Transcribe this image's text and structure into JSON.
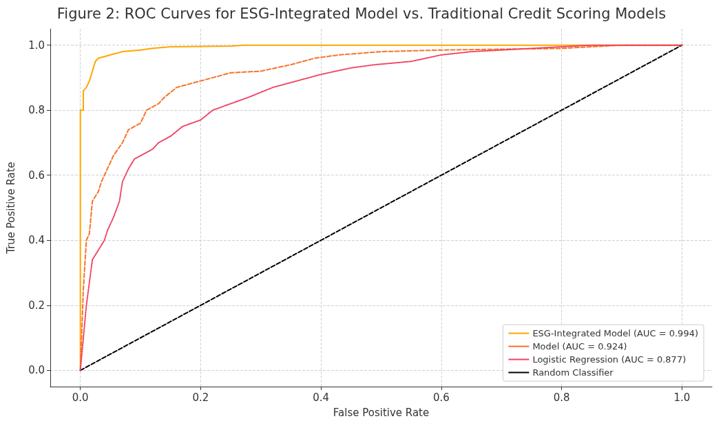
{
  "chart_data": {
    "type": "line",
    "title": "Figure 2: ROC Curves for ESG-Integrated Model vs. Traditional Credit Scoring Models",
    "xlabel": "False Positive Rate",
    "ylabel": "True Positive Rate",
    "xlim": [
      -0.05,
      1.05
    ],
    "ylim": [
      -0.05,
      1.05
    ],
    "xticks": [
      {
        "value": 0,
        "label": "0.0"
      },
      {
        "value": 0.2,
        "label": "0.2"
      },
      {
        "value": 0.4,
        "label": "0.4"
      },
      {
        "value": 0.6,
        "label": "0.6"
      },
      {
        "value": 0.8,
        "label": "0.8"
      },
      {
        "value": 1,
        "label": "1.0"
      }
    ],
    "yticks": [
      {
        "value": 0,
        "label": "0.0"
      },
      {
        "value": 0.2,
        "label": "0.2"
      },
      {
        "value": 0.4,
        "label": "0.4"
      },
      {
        "value": 0.6,
        "label": "0.6"
      },
      {
        "value": 0.8,
        "label": "0.8"
      },
      {
        "value": 1,
        "label": "1.0"
      }
    ],
    "grid": true,
    "legend": "bottom right",
    "marker": "none",
    "series": [
      {
        "name": "ESG-Integrated Model (AUC = 0.994)",
        "color": "#ffa500",
        "line_style": "solid",
        "x": [
          0,
          0,
          0.005,
          0.005,
          0.01,
          0.015,
          0.02,
          0.025,
          0.03,
          0.04,
          0.05,
          0.07,
          0.1,
          0.12,
          0.15,
          0.25,
          0.27,
          1
        ],
        "values": [
          0,
          0.8,
          0.8,
          0.86,
          0.87,
          0.89,
          0.92,
          0.95,
          0.96,
          0.965,
          0.97,
          0.98,
          0.985,
          0.99,
          0.995,
          0.997,
          1,
          1
        ]
      },
      {
        "name": "Model (AUC = 0.924)",
        "color": "#f5732a",
        "line_style": "dashed",
        "x": [
          0,
          0.005,
          0.01,
          0.015,
          0.02,
          0.03,
          0.035,
          0.04,
          0.05,
          0.055,
          0.07,
          0.08,
          0.1,
          0.11,
          0.13,
          0.14,
          0.16,
          0.2,
          0.22,
          0.25,
          0.3,
          0.35,
          0.39,
          0.43,
          0.5,
          0.6,
          0.8,
          0.9,
          1
        ],
        "values": [
          0,
          0.25,
          0.4,
          0.42,
          0.52,
          0.55,
          0.58,
          0.6,
          0.64,
          0.66,
          0.7,
          0.74,
          0.76,
          0.8,
          0.82,
          0.84,
          0.87,
          0.89,
          0.9,
          0.915,
          0.92,
          0.94,
          0.96,
          0.97,
          0.98,
          0.985,
          0.99,
          1,
          1
        ]
      },
      {
        "name": "Logistic Regression (AUC = 0.877)",
        "color": "#f0405f",
        "line_style": "dotted",
        "x": [
          0,
          0.005,
          0.01,
          0.015,
          0.02,
          0.03,
          0.04,
          0.045,
          0.055,
          0.065,
          0.07,
          0.08,
          0.09,
          0.12,
          0.13,
          0.15,
          0.17,
          0.2,
          0.22,
          0.25,
          0.28,
          0.32,
          0.36,
          0.4,
          0.45,
          0.49,
          0.55,
          0.6,
          0.65,
          0.75,
          0.85,
          1
        ],
        "values": [
          0,
          0.1,
          0.2,
          0.27,
          0.34,
          0.37,
          0.4,
          0.43,
          0.47,
          0.52,
          0.58,
          0.62,
          0.65,
          0.68,
          0.7,
          0.72,
          0.75,
          0.77,
          0.8,
          0.82,
          0.84,
          0.87,
          0.89,
          0.91,
          0.93,
          0.94,
          0.95,
          0.97,
          0.98,
          0.99,
          1,
          1
        ]
      },
      {
        "name": "Random Classifier",
        "color": "#000000",
        "line_style": "dashed",
        "x": [
          0,
          1
        ],
        "values": [
          0,
          1
        ]
      }
    ]
  }
}
